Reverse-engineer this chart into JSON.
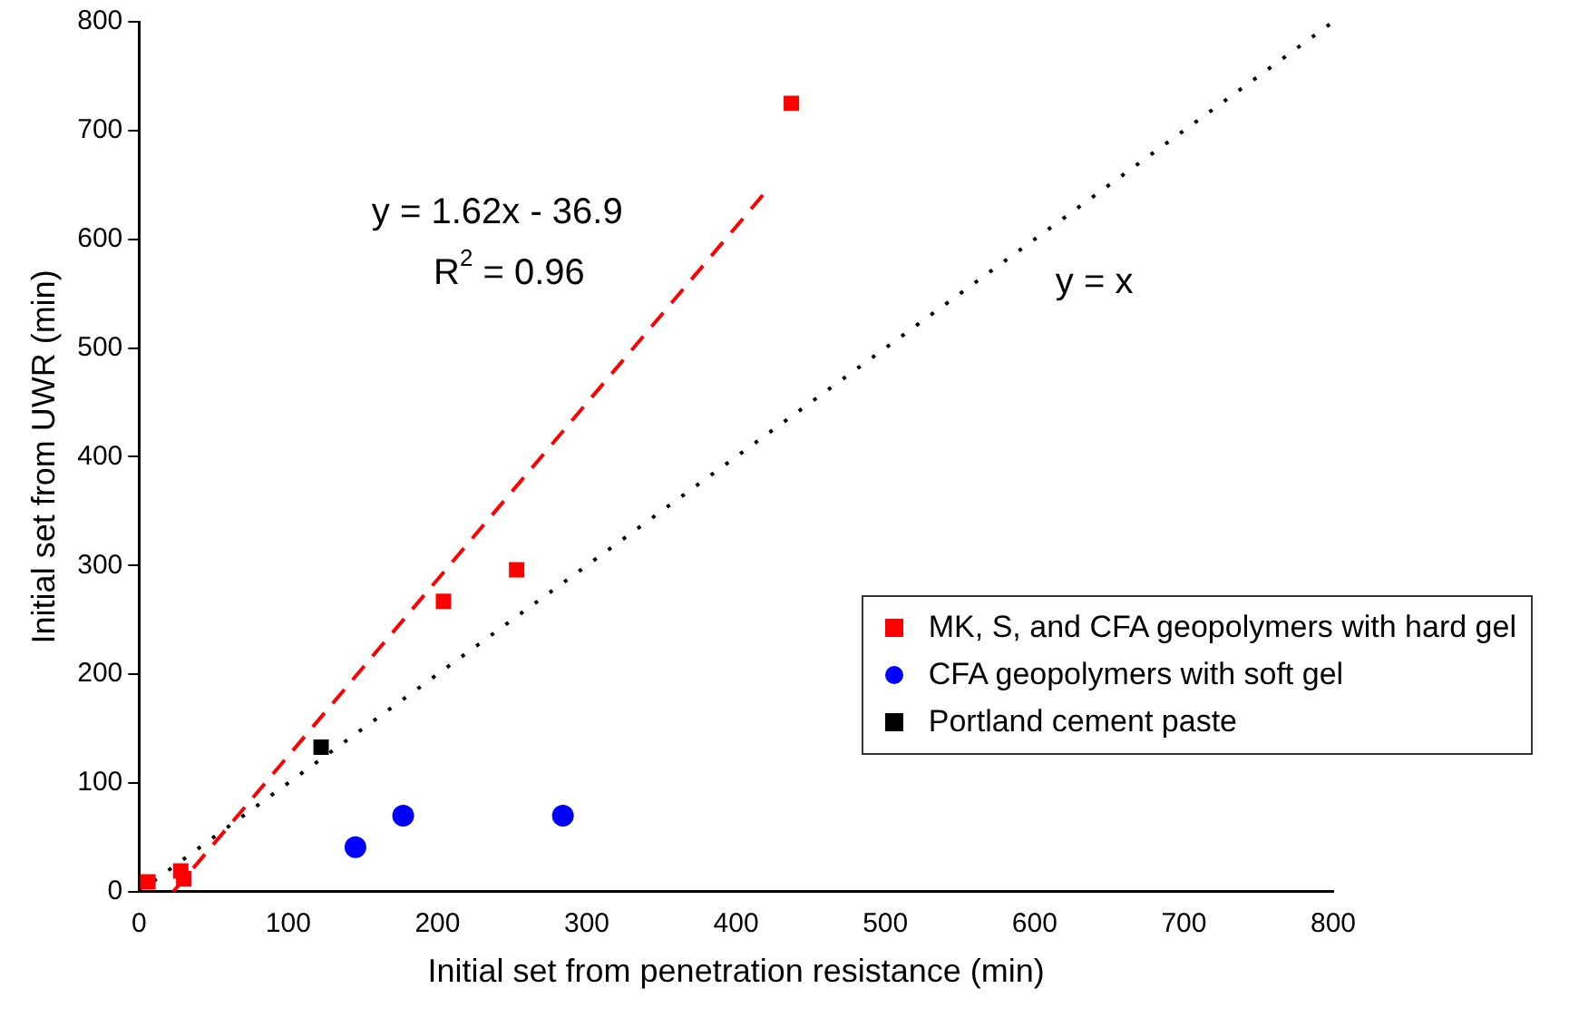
{
  "chart_data": {
    "type": "scatter",
    "xlabel": "Initial set from penetration resistance (min)",
    "ylabel": "Initial set from UWR (min)",
    "xlim": [
      0,
      800
    ],
    "ylim": [
      0,
      800
    ],
    "xticks": [
      0,
      100,
      200,
      300,
      400,
      500,
      600,
      700,
      800
    ],
    "yticks": [
      0,
      100,
      200,
      300,
      400,
      500,
      600,
      700,
      800
    ],
    "grid": false,
    "legend": "right",
    "series": [
      {
        "name": "MK, S, and CFA geopolymers with hard gel",
        "color": "#ff0000",
        "marker": "square",
        "x": [
          6,
          28,
          30,
          204,
          253,
          437
        ],
        "values": [
          9,
          19,
          12,
          267,
          296,
          725
        ]
      },
      {
        "name": "CFA geopolymers with soft gel",
        "color": "#0000ff",
        "marker": "circle",
        "x": [
          145,
          177,
          284
        ],
        "values": [
          41,
          70,
          70
        ]
      },
      {
        "name": "Portland cement paste",
        "color": "#000000",
        "marker": "square",
        "x": [
          122
        ],
        "values": [
          133
        ]
      },
      {
        "type": "line",
        "color": "#ff0000",
        "line_style": "dashed",
        "marker": "none",
        "x": [
          23,
          420
        ],
        "values": [
          0,
          644
        ]
      },
      {
        "type": "line",
        "color": "#000000",
        "line_style": "dotted",
        "marker": "none",
        "x": [
          0,
          800
        ],
        "values": [
          0,
          800
        ]
      }
    ],
    "annotations": [
      "y = 1.62x - 36.9",
      "R$^{2}$ = 0.96",
      "y = x"
    ]
  }
}
